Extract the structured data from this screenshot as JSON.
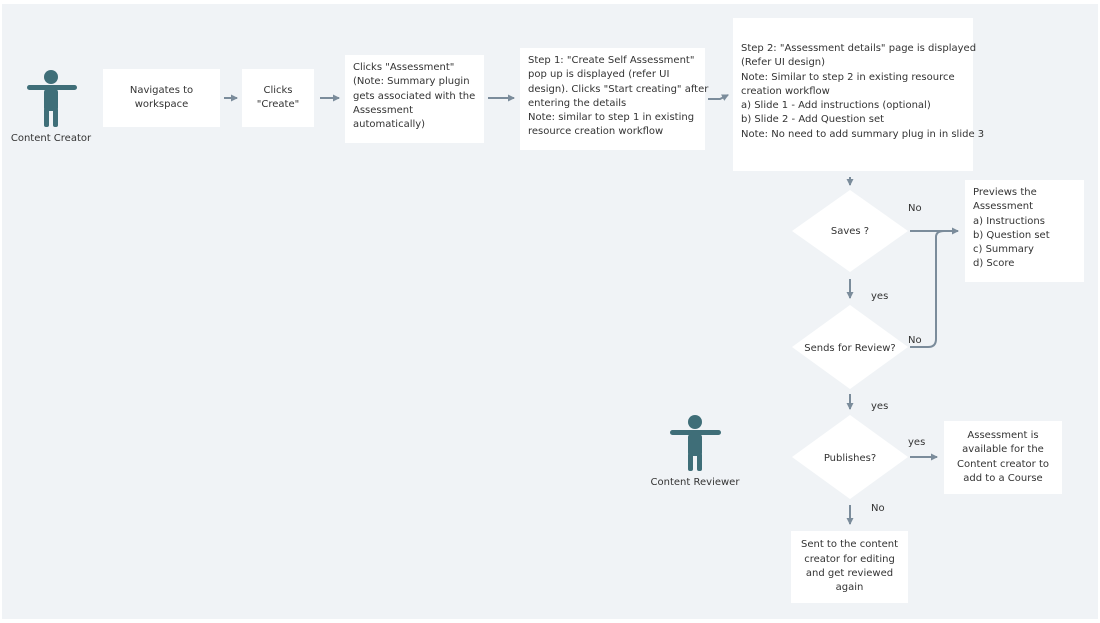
{
  "actors": {
    "creator": "Content Creator",
    "reviewer": "Content Reviewer"
  },
  "steps": {
    "navigate": [
      "Navigates to",
      "workspace"
    ],
    "create": [
      "Clicks",
      "\"Create\""
    ],
    "assessment": [
      "Clicks \"Assessment\"",
      "(Note: Summary plugin",
      "gets associated with the",
      "Assessment",
      "automatically)"
    ],
    "step1": [
      "Step 1: \"Create Self Assessment\"",
      "pop up is displayed (refer UI",
      "design). Clicks \"Start creating\" after",
      "entering the details",
      "Note: similar to step 1 in existing",
      "resource creation workflow"
    ],
    "step2": [
      "Step 2: \"Assessment details\" page is displayed",
      "(Refer UI design)",
      "Note: Similar to step 2 in existing resource",
      "creation workflow",
      "a) Slide 1 - Add instructions (optional)",
      "b) Slide 2 - Add Question set",
      "Note: No need to add summary plug in in slide 3"
    ],
    "preview": [
      "Previews the",
      "Assessment",
      "a) Instructions",
      "b) Question set",
      "c) Summary",
      "d) Score"
    ],
    "available": [
      "Assessment is",
      "available for the",
      "Content creator to",
      "add to a Course"
    ],
    "sent_back": [
      "Sent to the content",
      "creator for editing",
      "and get reviewed",
      "again"
    ]
  },
  "decisions": {
    "saves": "Saves ?",
    "review": "Sends for Review?",
    "publishes": "Publishes?"
  },
  "edge_labels": {
    "saves_no": "No",
    "saves_yes": "yes",
    "review_no": "No",
    "review_yes": "yes",
    "publishes_yes": "yes",
    "publishes_no": "No"
  },
  "colors": {
    "background": "#f0f3f6",
    "box": "#ffffff",
    "arrow": "#7b8c9b",
    "actor": "#3f6e78"
  }
}
